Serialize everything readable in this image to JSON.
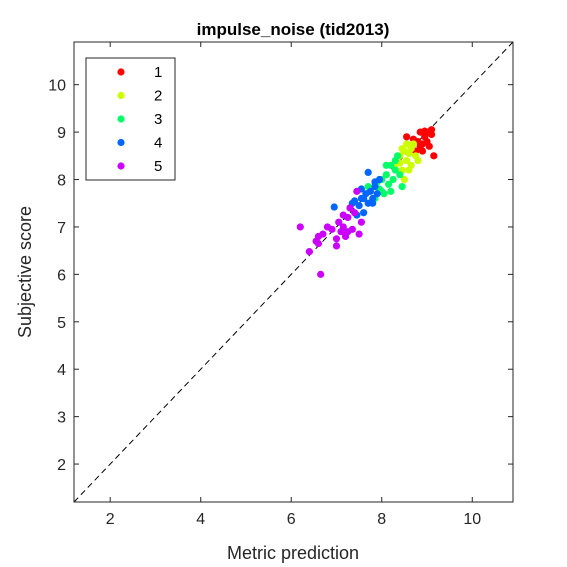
{
  "chart_data": {
    "type": "scatter",
    "title": "impulse_noise (tid2013)",
    "xlabel": "Metric prediction",
    "ylabel": "Subjective score",
    "xlim": [
      1.2,
      10.9
    ],
    "ylim": [
      1.2,
      10.9
    ],
    "xticks": [
      2,
      4,
      6,
      8,
      10
    ],
    "yticks": [
      2,
      3,
      4,
      5,
      6,
      7,
      8,
      9,
      10
    ],
    "grid": false,
    "reference_line": "y = x (dashed)",
    "legend_position": "top-left",
    "series": [
      {
        "name": "1",
        "color": "#ff0000",
        "points": [
          [
            8.55,
            8.9
          ],
          [
            8.7,
            8.85
          ],
          [
            8.75,
            8.6
          ],
          [
            8.8,
            8.8
          ],
          [
            8.85,
            9.0
          ],
          [
            8.9,
            8.75
          ],
          [
            8.95,
            8.9
          ],
          [
            9.0,
            9.0
          ],
          [
            9.05,
            8.7
          ],
          [
            9.1,
            9.05
          ],
          [
            8.9,
            8.6
          ],
          [
            9.0,
            8.8
          ],
          [
            8.85,
            8.7
          ],
          [
            9.15,
            8.5
          ],
          [
            8.95,
            9.02
          ],
          [
            9.1,
            8.95
          ]
        ]
      },
      {
        "name": "2",
        "color": "#ccff00",
        "points": [
          [
            8.3,
            8.3
          ],
          [
            8.4,
            8.5
          ],
          [
            8.45,
            8.2
          ],
          [
            8.5,
            8.6
          ],
          [
            8.55,
            8.4
          ],
          [
            8.6,
            8.55
          ],
          [
            8.65,
            8.3
          ],
          [
            8.7,
            8.75
          ],
          [
            8.75,
            8.5
          ],
          [
            8.8,
            8.4
          ],
          [
            8.6,
            8.2
          ],
          [
            8.5,
            8.0
          ],
          [
            8.45,
            8.65
          ],
          [
            8.65,
            8.65
          ],
          [
            8.55,
            8.75
          ],
          [
            8.4,
            8.35
          ]
        ]
      },
      {
        "name": "3",
        "color": "#00ff66",
        "points": [
          [
            7.7,
            7.85
          ],
          [
            7.85,
            7.6
          ],
          [
            7.95,
            7.8
          ],
          [
            8.0,
            8.0
          ],
          [
            8.05,
            7.7
          ],
          [
            8.1,
            8.1
          ],
          [
            8.15,
            7.9
          ],
          [
            8.2,
            8.3
          ],
          [
            8.25,
            8.0
          ],
          [
            8.3,
            8.2
          ],
          [
            8.35,
            8.5
          ],
          [
            8.4,
            8.1
          ],
          [
            8.45,
            7.85
          ],
          [
            8.2,
            7.75
          ],
          [
            8.1,
            8.3
          ],
          [
            8.0,
            7.75
          ],
          [
            7.9,
            7.95
          ],
          [
            8.3,
            8.4
          ]
        ]
      },
      {
        "name": "4",
        "color": "#0066ff",
        "points": [
          [
            6.95,
            7.42
          ],
          [
            7.3,
            7.4
          ],
          [
            7.4,
            7.55
          ],
          [
            7.5,
            7.45
          ],
          [
            7.55,
            7.6
          ],
          [
            7.6,
            7.3
          ],
          [
            7.65,
            7.7
          ],
          [
            7.7,
            7.5
          ],
          [
            7.75,
            7.75
          ],
          [
            7.8,
            7.6
          ],
          [
            7.85,
            7.85
          ],
          [
            7.9,
            7.7
          ],
          [
            7.95,
            8.0
          ],
          [
            7.7,
            8.15
          ],
          [
            7.85,
            7.95
          ],
          [
            7.55,
            7.8
          ],
          [
            7.45,
            7.25
          ],
          [
            7.35,
            7.5
          ],
          [
            7.6,
            7.6
          ],
          [
            7.8,
            7.5
          ]
        ]
      },
      {
        "name": "5",
        "color": "#cc00ff",
        "points": [
          [
            6.2,
            7.0
          ],
          [
            6.4,
            6.48
          ],
          [
            6.55,
            6.7
          ],
          [
            6.6,
            6.8
          ],
          [
            6.65,
            6.0
          ],
          [
            6.7,
            6.85
          ],
          [
            6.8,
            7.0
          ],
          [
            6.9,
            6.95
          ],
          [
            7.0,
            6.75
          ],
          [
            7.05,
            7.1
          ],
          [
            7.1,
            6.9
          ],
          [
            7.15,
            7.0
          ],
          [
            7.2,
            6.8
          ],
          [
            7.25,
            7.2
          ],
          [
            7.3,
            7.4
          ],
          [
            7.35,
            6.95
          ],
          [
            7.4,
            7.3
          ],
          [
            7.45,
            7.75
          ],
          [
            7.5,
            6.85
          ],
          [
            7.55,
            7.1
          ],
          [
            7.15,
            7.25
          ],
          [
            7.0,
            6.6
          ],
          [
            6.6,
            6.65
          ],
          [
            7.25,
            6.9
          ]
        ]
      }
    ]
  }
}
